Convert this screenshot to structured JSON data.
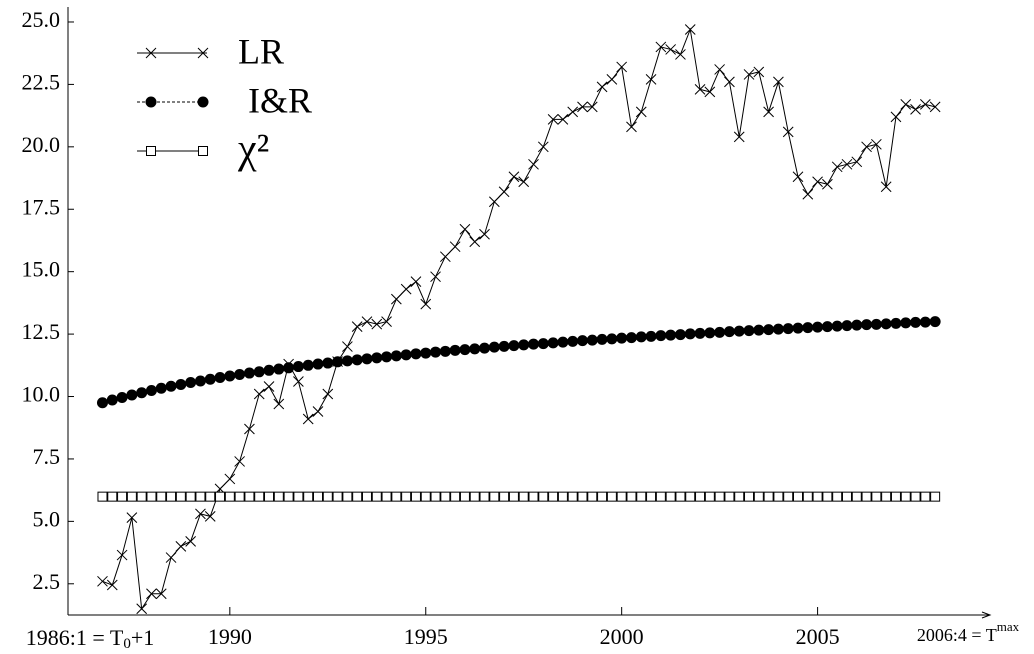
{
  "chart_data": {
    "type": "line",
    "x_start_label": [
      "1986:1 = T",
      "0",
      "+1"
    ],
    "x_end_label": [
      "2006:4 = T",
      "max"
    ],
    "x": [
      1986.75,
      1987,
      1987.25,
      1987.5,
      1987.75,
      1988,
      1988.25,
      1988.5,
      1988.75,
      1989,
      1989.25,
      1989.5,
      1989.75,
      1990,
      1990.25,
      1990.5,
      1990.75,
      1991,
      1991.25,
      1991.5,
      1991.75,
      1992,
      1992.25,
      1992.5,
      1992.75,
      1993,
      1993.25,
      1993.5,
      1993.75,
      1994,
      1994.25,
      1994.5,
      1994.75,
      1995,
      1995.25,
      1995.5,
      1995.75,
      1996,
      1996.25,
      1996.5,
      1996.75,
      1997,
      1997.25,
      1997.5,
      1997.75,
      1998,
      1998.25,
      1998.5,
      1998.75,
      1999,
      1999.25,
      1999.5,
      1999.75,
      2000,
      2000.25,
      2000.5,
      2000.75,
      2001,
      2001.25,
      2001.5,
      2001.75,
      2002,
      2002.25,
      2002.5,
      2002.75,
      2003,
      2003.25,
      2003.5,
      2003.75,
      2004,
      2004.25,
      2004.5,
      2004.75,
      2005,
      2005.25,
      2005.5,
      2005.75,
      2006,
      2006.25,
      2006.5,
      2006.75,
      2007,
      2007.25,
      2007.5,
      2007.75,
      2008
    ],
    "series": [
      {
        "name": "LR",
        "color": "#000000",
        "marker": "x",
        "values": [
          2.6,
          2.45,
          3.65,
          5.15,
          1.5,
          2.1,
          2.1,
          3.55,
          4.0,
          4.2,
          5.3,
          5.2,
          6.3,
          6.7,
          7.4,
          8.7,
          10.1,
          10.4,
          9.7,
          11.3,
          10.6,
          9.1,
          9.4,
          10.1,
          11.4,
          12.0,
          12.8,
          13.0,
          12.9,
          13.0,
          13.9,
          14.3,
          14.6,
          13.7,
          14.8,
          15.6,
          16.0,
          16.7,
          16.2,
          16.5,
          17.8,
          18.2,
          18.8,
          18.6,
          19.3,
          20.0,
          21.1,
          21.1,
          21.4,
          21.6,
          21.6,
          22.4,
          22.7,
          23.2,
          20.8,
          21.4,
          22.7,
          24.0,
          23.9,
          23.7,
          24.7,
          22.3,
          22.2,
          23.1,
          22.6,
          20.4,
          22.9,
          23.0,
          21.4,
          22.6,
          20.6,
          18.8,
          18.1,
          18.6,
          18.5,
          19.2,
          19.3,
          19.4,
          20.0,
          20.1,
          18.4,
          21.2,
          21.7,
          21.5,
          21.7,
          21.6
        ]
      },
      {
        "name": "I&R",
        "color": "#000000",
        "marker": "dot",
        "values": [
          9.75,
          9.86,
          9.96,
          10.06,
          10.15,
          10.24,
          10.33,
          10.41,
          10.48,
          10.56,
          10.62,
          10.69,
          10.76,
          10.82,
          10.88,
          10.94,
          10.99,
          11.05,
          11.1,
          11.15,
          11.2,
          11.25,
          11.3,
          11.34,
          11.39,
          11.43,
          11.47,
          11.51,
          11.55,
          11.59,
          11.63,
          11.67,
          11.71,
          11.74,
          11.78,
          11.81,
          11.85,
          11.88,
          11.91,
          11.94,
          11.98,
          12.01,
          12.04,
          12.07,
          12.1,
          12.12,
          12.15,
          12.18,
          12.21,
          12.24,
          12.26,
          12.29,
          12.31,
          12.34,
          12.36,
          12.39,
          12.41,
          12.44,
          12.46,
          12.48,
          12.51,
          12.53,
          12.55,
          12.57,
          12.6,
          12.62,
          12.64,
          12.66,
          12.68,
          12.7,
          12.72,
          12.74,
          12.76,
          12.78,
          12.8,
          12.82,
          12.84,
          12.86,
          12.88,
          12.89,
          12.91,
          12.93,
          12.95,
          12.97,
          12.98,
          13.0
        ]
      },
      {
        "name": "χ²",
        "color": "#000000",
        "marker": "square",
        "values": [
          5.99,
          5.99,
          5.99,
          5.99,
          5.99,
          5.99,
          5.99,
          5.99,
          5.99,
          5.99,
          5.99,
          5.99,
          5.99,
          5.99,
          5.99,
          5.99,
          5.99,
          5.99,
          5.99,
          5.99,
          5.99,
          5.99,
          5.99,
          5.99,
          5.99,
          5.99,
          5.99,
          5.99,
          5.99,
          5.99,
          5.99,
          5.99,
          5.99,
          5.99,
          5.99,
          5.99,
          5.99,
          5.99,
          5.99,
          5.99,
          5.99,
          5.99,
          5.99,
          5.99,
          5.99,
          5.99,
          5.99,
          5.99,
          5.99,
          5.99,
          5.99,
          5.99,
          5.99,
          5.99,
          5.99,
          5.99,
          5.99,
          5.99,
          5.99,
          5.99,
          5.99,
          5.99,
          5.99,
          5.99,
          5.99,
          5.99,
          5.99,
          5.99,
          5.99,
          5.99,
          5.99,
          5.99,
          5.99,
          5.99,
          5.99,
          5.99,
          5.99,
          5.99,
          5.99,
          5.99,
          5.99,
          5.99,
          5.99,
          5.99,
          5.99,
          5.99
        ]
      }
    ],
    "xlim": [
      1985.87,
      2009.4
    ],
    "xticks": [
      1990,
      1995,
      2000,
      2005
    ],
    "ylim": [
      1.25,
      25.6
    ],
    "yticks": [
      2.5,
      {
        "value": 5,
        "label": "5.0"
      },
      7.5,
      {
        "value": 10,
        "label": "10.0"
      },
      12.5,
      {
        "value": 15,
        "label": "15.0"
      },
      17.5,
      {
        "value": 20,
        "label": "20.0"
      },
      22.5,
      {
        "value": 25,
        "label": "25.0"
      }
    ],
    "grid": false,
    "legend": "upper left"
  }
}
